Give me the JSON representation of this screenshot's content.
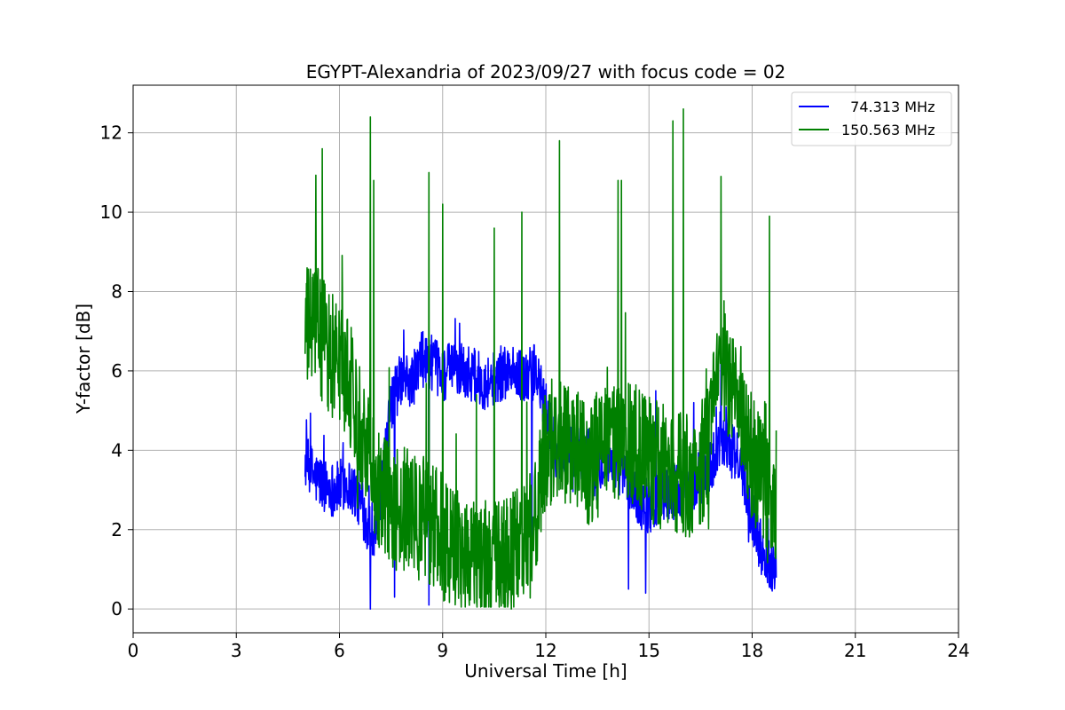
{
  "chart_data": {
    "type": "line",
    "title": "EGYPT-Alexandria of 2023/09/27 with focus code = 02",
    "xlabel": "Universal Time [h]",
    "ylabel": "Y-factor [dB]",
    "xlim": [
      0,
      24
    ],
    "ylim": [
      -0.6,
      13.2
    ],
    "xticks": [
      0,
      3,
      6,
      9,
      12,
      15,
      18,
      21,
      24
    ],
    "yticks": [
      0,
      2,
      4,
      6,
      8,
      10,
      12
    ],
    "grid": true,
    "legend_position": "top-right",
    "series": [
      {
        "name": "  74.313 MHz",
        "color": "#0000ff",
        "x": [
          5.0,
          5.3,
          5.6,
          5.9,
          6.2,
          6.5,
          6.8,
          7.0,
          7.2,
          7.5,
          7.8,
          8.1,
          8.4,
          8.7,
          9.0,
          9.3,
          9.6,
          9.9,
          10.2,
          10.5,
          10.8,
          11.1,
          11.4,
          11.7,
          12.0,
          12.3,
          12.6,
          12.9,
          13.2,
          13.5,
          13.8,
          14.1,
          14.4,
          14.7,
          15.0,
          15.3,
          15.6,
          15.9,
          16.2,
          16.5,
          16.8,
          17.1,
          17.4,
          17.7,
          18.0,
          18.3,
          18.6,
          18.7
        ],
        "y": [
          3.7,
          3.3,
          3.1,
          3.0,
          3.2,
          2.9,
          2.2,
          2.0,
          2.7,
          5.2,
          5.8,
          5.7,
          6.3,
          6.2,
          5.9,
          6.1,
          6.0,
          5.9,
          5.7,
          5.8,
          6.0,
          5.9,
          5.8,
          6.0,
          5.0,
          4.0,
          3.8,
          4.0,
          3.9,
          3.7,
          3.8,
          3.6,
          3.3,
          2.7,
          2.6,
          2.8,
          2.9,
          3.0,
          3.1,
          3.3,
          3.6,
          4.4,
          4.0,
          3.6,
          2.4,
          1.4,
          1.1,
          1.2
        ],
        "noise_amp": 0.7,
        "spikes": [
          [
            6.9,
            0.0
          ],
          [
            7.6,
            0.3
          ],
          [
            8.6,
            0.1
          ],
          [
            11.6,
            1.4
          ],
          [
            14.4,
            0.5
          ],
          [
            14.9,
            0.4
          ],
          [
            15.2,
            5.5
          ],
          [
            16.3,
            5.2
          ],
          [
            17.1,
            6.5
          ]
        ]
      },
      {
        "name": "150.563 MHz",
        "color": "#008000",
        "x": [
          5.0,
          5.3,
          5.6,
          5.9,
          6.2,
          6.5,
          6.8,
          7.0,
          7.2,
          7.5,
          7.8,
          8.1,
          8.4,
          8.7,
          9.0,
          9.3,
          9.6,
          9.9,
          10.2,
          10.5,
          10.8,
          11.1,
          11.4,
          11.7,
          12.0,
          12.3,
          12.6,
          12.9,
          13.2,
          13.5,
          13.8,
          14.1,
          14.4,
          14.7,
          15.0,
          15.3,
          15.6,
          15.9,
          16.2,
          16.5,
          16.8,
          17.1,
          17.4,
          17.7,
          18.0,
          18.3,
          18.6,
          18.7
        ],
        "y": [
          7.0,
          7.2,
          6.6,
          6.3,
          6.0,
          5.0,
          4.2,
          3.5,
          3.0,
          2.6,
          2.5,
          2.4,
          2.3,
          2.2,
          1.8,
          1.6,
          1.5,
          1.4,
          1.2,
          1.1,
          1.2,
          1.4,
          1.7,
          2.2,
          4.0,
          4.4,
          4.1,
          3.9,
          3.6,
          3.9,
          4.0,
          4.3,
          4.3,
          4.0,
          3.8,
          3.6,
          3.5,
          3.4,
          3.3,
          3.4,
          4.5,
          6.5,
          5.5,
          4.5,
          3.8,
          3.2,
          2.2,
          2.8
        ],
        "noise_amp": 1.6,
        "spikes": [
          [
            5.5,
            11.6
          ],
          [
            6.9,
            12.4
          ],
          [
            7.0,
            10.8
          ],
          [
            8.6,
            11.0
          ],
          [
            9.0,
            10.2
          ],
          [
            10.5,
            9.6
          ],
          [
            11.3,
            10.0
          ],
          [
            12.4,
            11.8
          ],
          [
            14.1,
            10.8
          ],
          [
            14.2,
            10.8
          ],
          [
            15.7,
            12.3
          ],
          [
            16.0,
            12.6
          ],
          [
            17.1,
            10.9
          ],
          [
            18.5,
            9.9
          ],
          [
            18.7,
            4.5
          ],
          [
            11.0,
            0.0
          ],
          [
            10.8,
            0.1
          ]
        ]
      }
    ]
  }
}
